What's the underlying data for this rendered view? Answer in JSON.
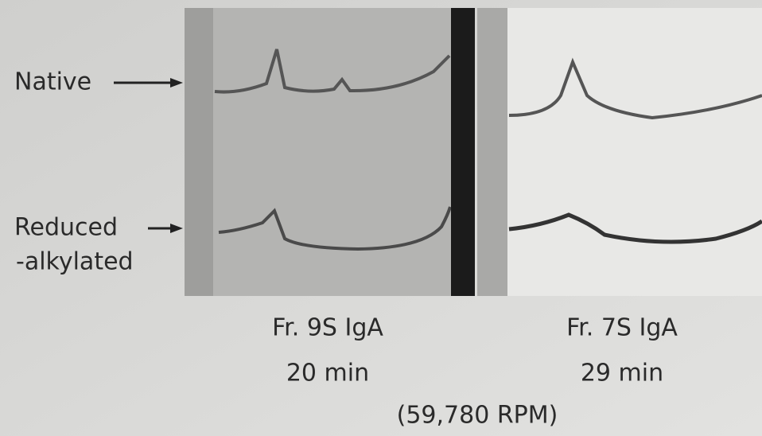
{
  "labels": {
    "native": "Native",
    "reduced": "Reduced",
    "alkylated": "-alkylated"
  },
  "panels": [
    {
      "fraction": "Fr. 9S IgA",
      "time": "20 min"
    },
    {
      "fraction": "Fr. 7S IgA",
      "time": "29 min"
    }
  ],
  "speed": "(59,780 RPM)"
}
